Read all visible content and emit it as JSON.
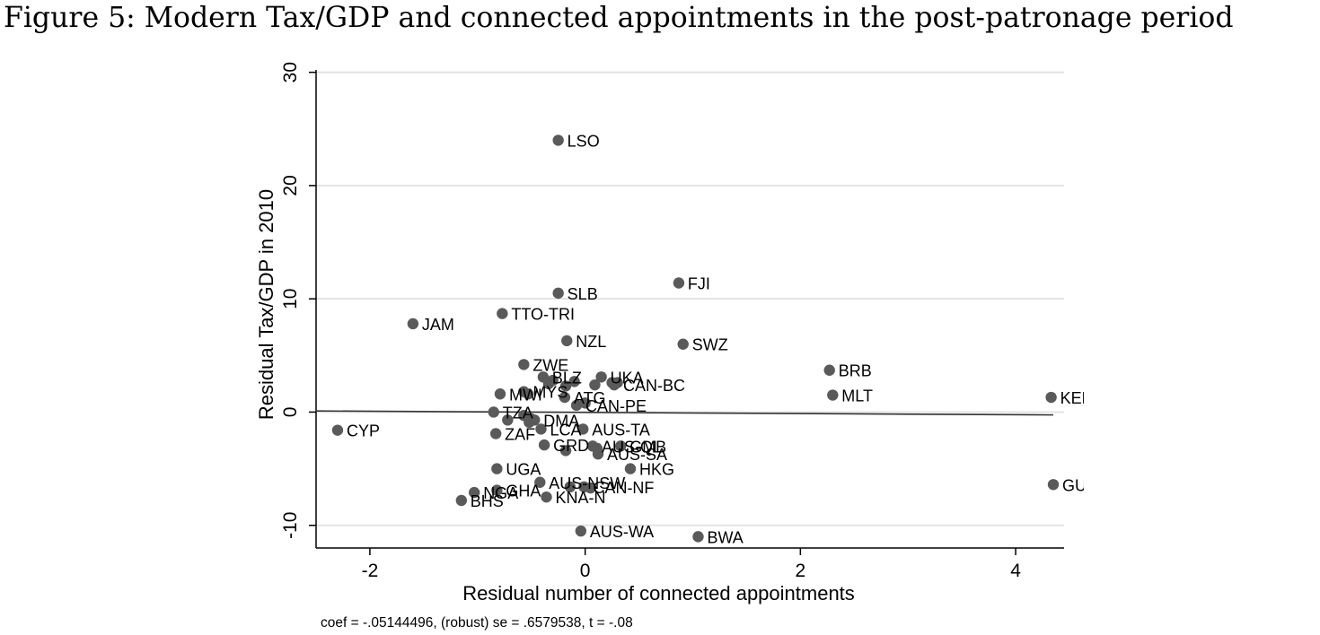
{
  "figure": {
    "title": "Figure 5: Modern Tax/GDP and connected appointments in the post-patronage period"
  },
  "chart_data": {
    "type": "scatter",
    "title": "",
    "xlabel": "Residual number of connected appointments",
    "ylabel": "Residual Tax/GDP in 2010",
    "xlim": [
      -2.5,
      4.45
    ],
    "ylim": [
      -12,
      31
    ],
    "xticks": [
      -2,
      0,
      2,
      4
    ],
    "yticks": [
      -10,
      0,
      10,
      20,
      30
    ],
    "xtick_labels": [
      "-2",
      "0",
      "2",
      "4"
    ],
    "ytick_labels": [
      "-10",
      "0",
      "10",
      "20",
      "30"
    ],
    "grid": "horizontal",
    "legend": "none",
    "marker_color": "#5a5a5a",
    "line_color": "#333333",
    "note": "coef = -.05144496, (robust) se = .6579538, t = -.08",
    "fit_line": {
      "x": [
        -2.5,
        4.35
      ],
      "y": [
        0.1,
        -0.25
      ]
    },
    "points": [
      {
        "label": "LSO",
        "x": -0.25,
        "y": 24.0
      },
      {
        "label": "FJI",
        "x": 0.87,
        "y": 11.4
      },
      {
        "label": "SLB",
        "x": -0.25,
        "y": 10.5
      },
      {
        "label": "TTO-TRI",
        "x": -0.77,
        "y": 8.7
      },
      {
        "label": "JAM",
        "x": -1.6,
        "y": 7.8
      },
      {
        "label": "NZL",
        "x": -0.17,
        "y": 6.3
      },
      {
        "label": "SWZ",
        "x": 0.91,
        "y": 6.0
      },
      {
        "label": "ZWE",
        "x": -0.57,
        "y": 4.2
      },
      {
        "label": "BRB",
        "x": 2.27,
        "y": 3.7
      },
      {
        "label": "BLZ",
        "x": -0.39,
        "y": 3.1
      },
      {
        "label": "UKA",
        "x": 0.15,
        "y": 3.1
      },
      {
        "label": "CAN-BC",
        "x": 0.27,
        "y": 2.4
      },
      {
        "label": "MWI",
        "x": -0.79,
        "y": 1.6
      },
      {
        "label": "MYS",
        "x": -0.57,
        "y": 1.8
      },
      {
        "label": "ATG",
        "x": -0.19,
        "y": 1.3
      },
      {
        "label": "MLT",
        "x": 2.3,
        "y": 1.5
      },
      {
        "label": "KEN",
        "x": 4.33,
        "y": 1.3
      },
      {
        "label": "CAN-PE",
        "x": -0.08,
        "y": 0.6
      },
      {
        "label": "TZA",
        "x": -0.85,
        "y": 0.0
      },
      {
        "label": "DMA",
        "x": -0.47,
        "y": -0.7
      },
      {
        "label": "AUS-TA",
        "x": -0.02,
        "y": -1.5
      },
      {
        "label": "LCA",
        "x": -0.41,
        "y": -1.5
      },
      {
        "label": "CYP",
        "x": -2.3,
        "y": -1.6
      },
      {
        "label": "ZAF",
        "x": -0.83,
        "y": -1.9
      },
      {
        "label": "GRD",
        "x": -0.38,
        "y": -2.9
      },
      {
        "label": "AUS-QL",
        "x": 0.07,
        "y": -3.0
      },
      {
        "label": "GMB",
        "x": 0.33,
        "y": -3.0
      },
      {
        "label": "AUS-SA",
        "x": 0.12,
        "y": -3.7
      },
      {
        "label": "HKG",
        "x": 0.42,
        "y": -5.0
      },
      {
        "label": "UGA",
        "x": -0.82,
        "y": -5.0
      },
      {
        "label": "AUS-NSW",
        "x": -0.42,
        "y": -6.2
      },
      {
        "label": "CAN-NF",
        "x": -0.01,
        "y": -6.6
      },
      {
        "label": "GUY",
        "x": 4.35,
        "y": -6.4
      },
      {
        "label": "GHA",
        "x": -0.82,
        "y": -6.9
      },
      {
        "label": "NGA",
        "x": -1.03,
        "y": -7.1
      },
      {
        "label": "KNA-N",
        "x": -0.36,
        "y": -7.5
      },
      {
        "label": "BHS",
        "x": -1.15,
        "y": -7.8
      },
      {
        "label": "AUS-WA",
        "x": -0.04,
        "y": -10.5
      },
      {
        "label": "BWA",
        "x": 1.05,
        "y": -11.0
      }
    ],
    "unlabeled_points": [
      {
        "x": -0.34,
        "y": 2.5
      },
      {
        "x": -0.1,
        "y": 2.7
      },
      {
        "x": -0.18,
        "y": 2.3
      },
      {
        "x": 0.09,
        "y": 2.4
      },
      {
        "x": 0.25,
        "y": 2.6
      },
      {
        "x": 0.3,
        "y": 2.6
      },
      {
        "x": -0.3,
        "y": 2.8
      },
      {
        "x": -0.53,
        "y": 1.6
      },
      {
        "x": 0.0,
        "y": 0.8
      },
      {
        "x": -0.72,
        "y": -0.7
      },
      {
        "x": -0.57,
        "y": -0.3
      },
      {
        "x": -0.5,
        "y": -0.6
      },
      {
        "x": -0.52,
        "y": -0.9
      },
      {
        "x": -0.18,
        "y": -3.4
      },
      {
        "x": 0.11,
        "y": -3.2
      },
      {
        "x": -0.14,
        "y": -6.6
      },
      {
        "x": 0.05,
        "y": -6.7
      }
    ]
  }
}
